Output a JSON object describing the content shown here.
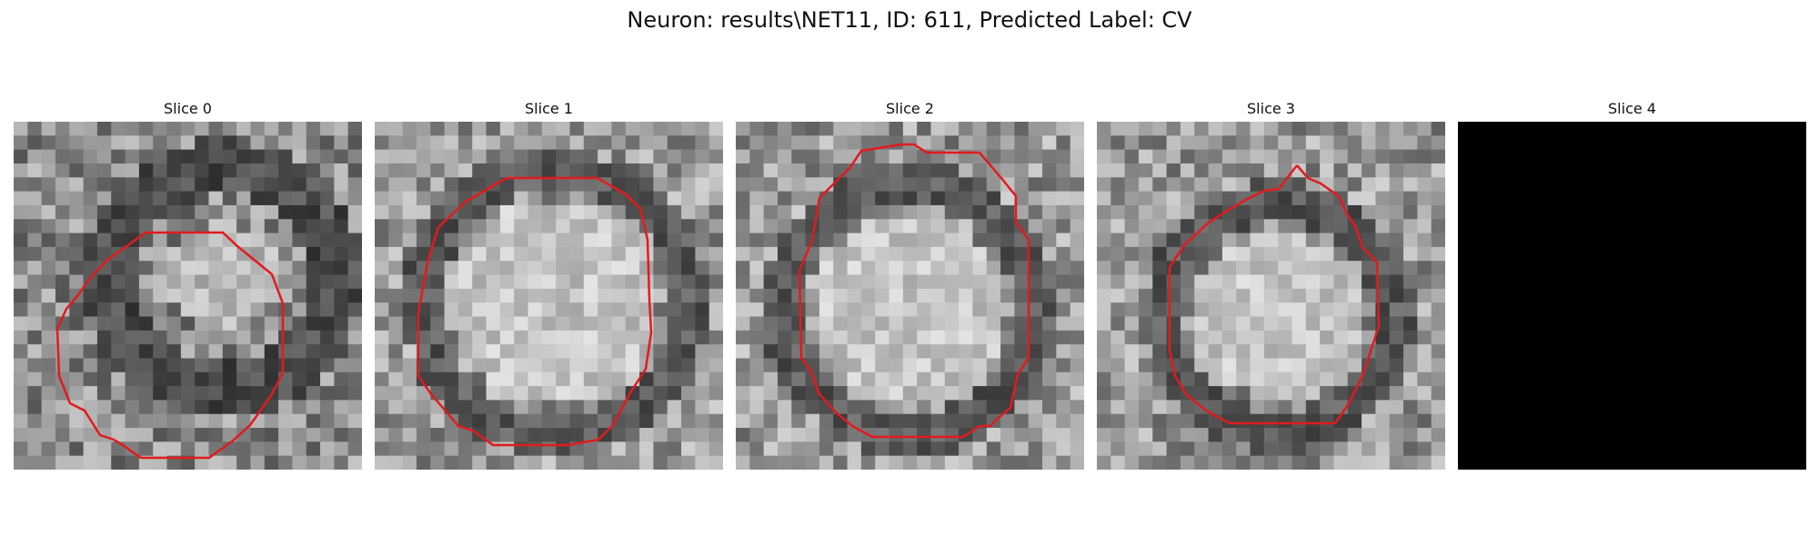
{
  "figure": {
    "title": "Neuron: results\\NET11, ID: 611, Predicted Label: CV"
  },
  "panels": [
    {
      "title": "Slice 0",
      "pattern": "slice0",
      "contour_color": "#e31a1c"
    },
    {
      "title": "Slice 1",
      "pattern": "slice1",
      "contour_color": "#e31a1c"
    },
    {
      "title": "Slice 2",
      "pattern": "slice2",
      "contour_color": "#e31a1c"
    },
    {
      "title": "Slice 3",
      "pattern": "slice3",
      "contour_color": "#e31a1c"
    },
    {
      "title": "Slice 4",
      "pattern": "black",
      "contour_color": "#e31a1c"
    }
  ],
  "colors": {
    "background": "#ffffff",
    "contour": "#e31a1c",
    "empty_slice": "#000000"
  }
}
